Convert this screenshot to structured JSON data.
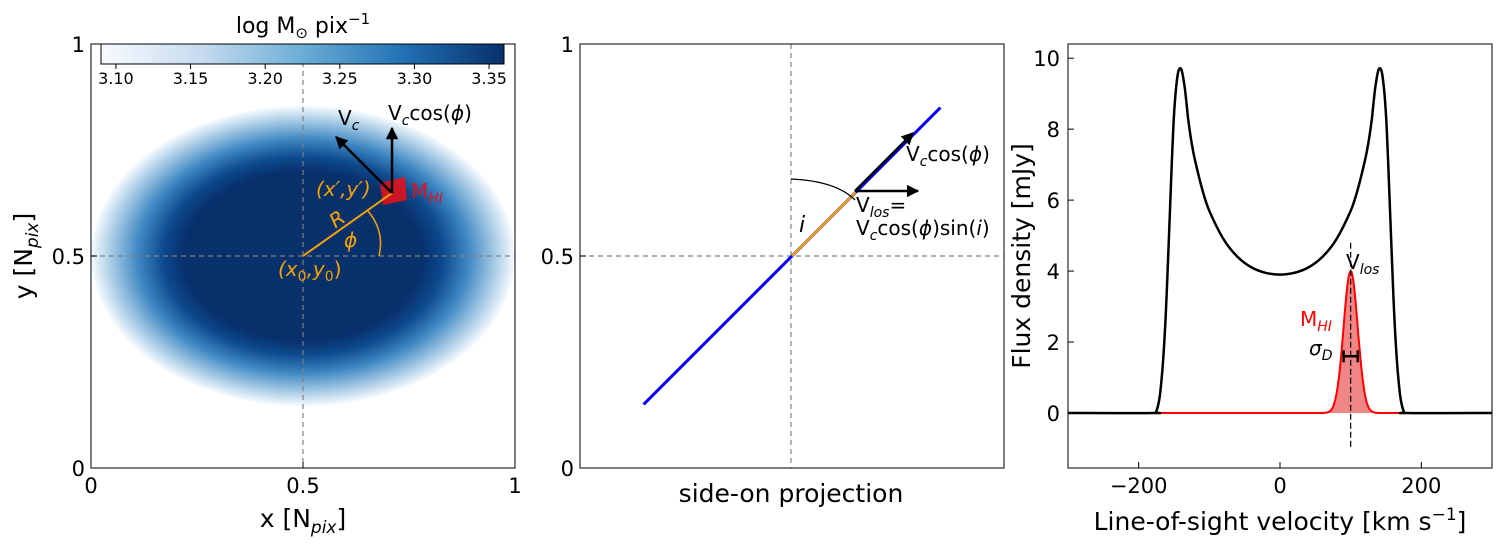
{
  "chart_data": [
    {
      "panel": "left",
      "type": "heatmap",
      "xlabel": "x [N",
      "xlabel_sub": "pix",
      "xlabel_end": "]",
      "ylabel": "y [N",
      "ylabel_sub": "pix",
      "ylabel_end": "]",
      "xlim": [
        0,
        1
      ],
      "ylim": [
        0,
        1
      ],
      "xticks": [
        0,
        0.5,
        1
      ],
      "yticks": [
        0,
        0.5,
        1
      ],
      "xtick_labels": [
        "0",
        "0.5",
        "1"
      ],
      "ytick_labels": [
        "0",
        "0.5",
        "1"
      ],
      "colorbar": {
        "label": "log M",
        "label_sub": "⊙",
        "label_unit": " pix",
        "label_sup": "−1",
        "range": [
          3.09,
          3.36
        ],
        "ticks": [
          3.1,
          3.15,
          3.2,
          3.25,
          3.3,
          3.35
        ],
        "tick_labels": [
          "3.10",
          "3.15",
          "3.20",
          "3.25",
          "3.30",
          "3.35"
        ],
        "colors": [
          "#f7fbff",
          "#c6dbef",
          "#6baed6",
          "#2171b5",
          "#08306b"
        ]
      },
      "annotations": {
        "vc": "V",
        "vc_sub": "c",
        "vccos": "V",
        "vccos_sub": "c",
        "vccos_rest": "cos(",
        "phi": "ϕ",
        "close": ")",
        "xprime": "(x′,y′)",
        "r": "R",
        "x0y0_open": "(x",
        "x0_sub": "0",
        "x0y0_mid": ",y",
        "y0_sub": "0",
        "x0y0_close": ")",
        "mhi": "M",
        "mhi_sub": "HI"
      },
      "colors": {
        "orange": "#f5a300",
        "red": "#e0121c",
        "guide": "#808080"
      }
    },
    {
      "panel": "middle",
      "type": "line",
      "xlabel": "side-on projection",
      "xlim": [
        0,
        1
      ],
      "ylim": [
        0,
        1
      ],
      "yticks": [
        0,
        0.5,
        1
      ],
      "ytick_labels": [
        "0",
        "0.5",
        "1"
      ],
      "series": [
        {
          "x": [
            0.15,
            0.85
          ],
          "y": [
            0.15,
            0.85
          ],
          "color": "#0000ff"
        },
        {
          "x": [
            0.5,
            0.65
          ],
          "y": [
            0.5,
            0.65
          ],
          "color": "#f5a300"
        }
      ],
      "annotations": {
        "i": "i",
        "vccos": "V",
        "vccos_sub": "c",
        "vccos_rest": "cos(",
        "phi": "ϕ",
        "close": ")",
        "vlos": "V",
        "vlos_sub": "los",
        "vlos_eq": "=",
        "vlos2": "V",
        "vlos2_sub": "c",
        "vlos2_rest": "cos(",
        "vlos2_phi": "ϕ",
        "vlos2_mid": ")sin(",
        "vlos2_i": "i",
        "vlos2_close": ")"
      }
    },
    {
      "panel": "right",
      "type": "area",
      "xlabel": "Line-of-sight velocity [km s",
      "xlabel_sup": "−1",
      "xlabel_end": "]",
      "ylabel": "Flux density [mJy]",
      "xlim": [
        -300,
        300
      ],
      "ylim": [
        -1.55,
        10.4
      ],
      "xticks": [
        -200,
        0,
        200
      ],
      "yticks": [
        0,
        2,
        4,
        6,
        8,
        10
      ],
      "xtick_labels": [
        "−200",
        "0",
        "200"
      ],
      "ytick_labels": [
        "0",
        "2",
        "4",
        "6",
        "8",
        "10"
      ],
      "series": [
        {
          "name": "",
          "color": "#000000",
          "x": [
            -300,
            -180,
            -175,
            -170,
            -165,
            -160,
            -155,
            -150,
            -145,
            -140,
            -135,
            -130,
            -125,
            -120,
            -110,
            -100,
            -80,
            -60,
            -40,
            -20,
            0,
            20,
            40,
            60,
            80,
            100,
            110,
            120,
            125,
            130,
            135,
            140,
            145,
            150,
            155,
            160,
            165,
            170,
            175,
            180,
            300
          ],
          "y": [
            0,
            0,
            0.05,
            0.5,
            1.6,
            3.5,
            6.1,
            8.4,
            9.5,
            9.7,
            9.2,
            8.3,
            7.6,
            7.1,
            6.3,
            5.7,
            4.9,
            4.4,
            4.1,
            3.95,
            3.9,
            3.95,
            4.1,
            4.4,
            4.9,
            5.7,
            6.3,
            7.1,
            7.6,
            8.3,
            9.2,
            9.7,
            9.5,
            8.4,
            6.1,
            3.5,
            1.6,
            0.5,
            0.05,
            0,
            0
          ]
        },
        {
          "name": "",
          "color": "#ff0000",
          "fill": "#f08080",
          "gaussian": {
            "center": 100,
            "amplitude": 4.0,
            "sigma": 10
          }
        }
      ],
      "annotations": {
        "vlos": "V",
        "vlos_sub": "los",
        "mhi": "M",
        "mhi_sub": "HI",
        "sigma": "σ",
        "sigma_sub": "D"
      }
    }
  ]
}
